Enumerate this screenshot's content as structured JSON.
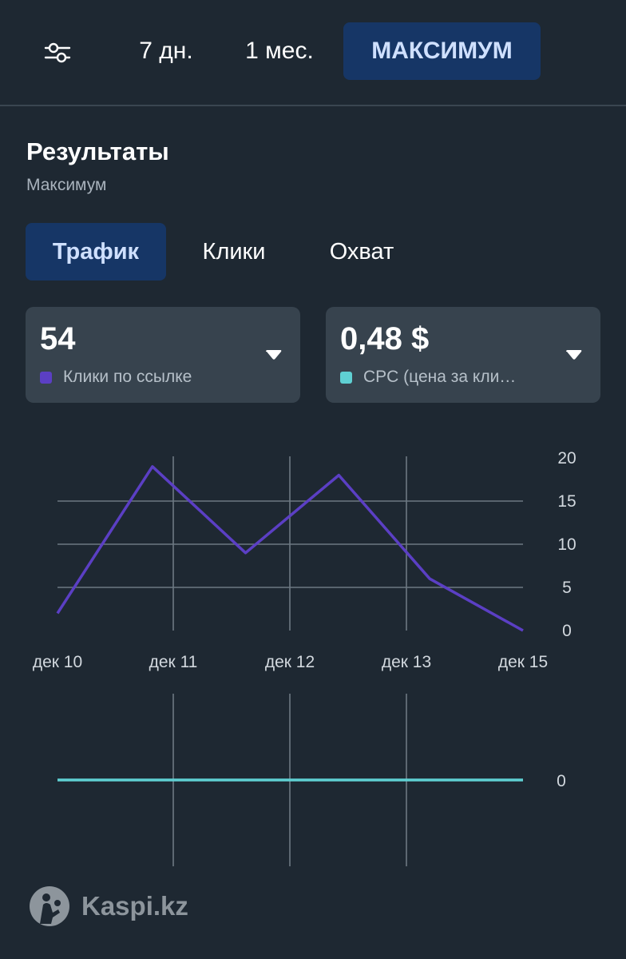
{
  "header": {
    "filter_icon": "sliders-icon",
    "ranges": [
      {
        "label": "7 дн.",
        "active": false
      },
      {
        "label": "1 мес.",
        "active": false
      },
      {
        "label": "МАКСИМУМ",
        "active": true
      }
    ]
  },
  "section": {
    "title": "Результаты",
    "subtitle": "Максимум"
  },
  "tabs": [
    {
      "label": "Трафик",
      "active": true
    },
    {
      "label": "Клики",
      "active": false
    },
    {
      "label": "Охват",
      "active": false
    }
  ],
  "metrics": [
    {
      "value": "54",
      "label": "Клики по ссылке",
      "color": "#5b3fc4",
      "icon": "caret-down-icon"
    },
    {
      "value": "0,48 $",
      "label": "CPC (цена за кли…",
      "color": "#5fd0d3",
      "icon": "caret-down-icon"
    }
  ],
  "chart_data": [
    {
      "type": "line",
      "x": [
        "дек 10",
        "дек 11",
        "дек 12",
        "дек 13",
        "дек 15"
      ],
      "series": [
        {
          "points": [
            [
              0,
              2
            ],
            [
              0.82,
              19
            ],
            [
              1.62,
              9
            ],
            [
              2.42,
              18
            ],
            [
              3.2,
              6
            ],
            [
              4,
              0
            ]
          ],
          "color": "#5b3fc4"
        }
      ],
      "yticks": [
        "20",
        "15",
        "10",
        "5",
        "0"
      ],
      "ylim": [
        0,
        20
      ],
      "grid": true,
      "yaxis_position": "right"
    },
    {
      "type": "line",
      "series": [
        {
          "points": [
            [
              0,
              0
            ],
            [
              4,
              0
            ]
          ],
          "color": "#5fd0d3"
        }
      ],
      "yticks": [
        "0"
      ],
      "grid": true,
      "yaxis_position": "right"
    }
  ],
  "watermark": {
    "text": "Kaspi.kz",
    "icon": "kaspi-logo-icon"
  }
}
